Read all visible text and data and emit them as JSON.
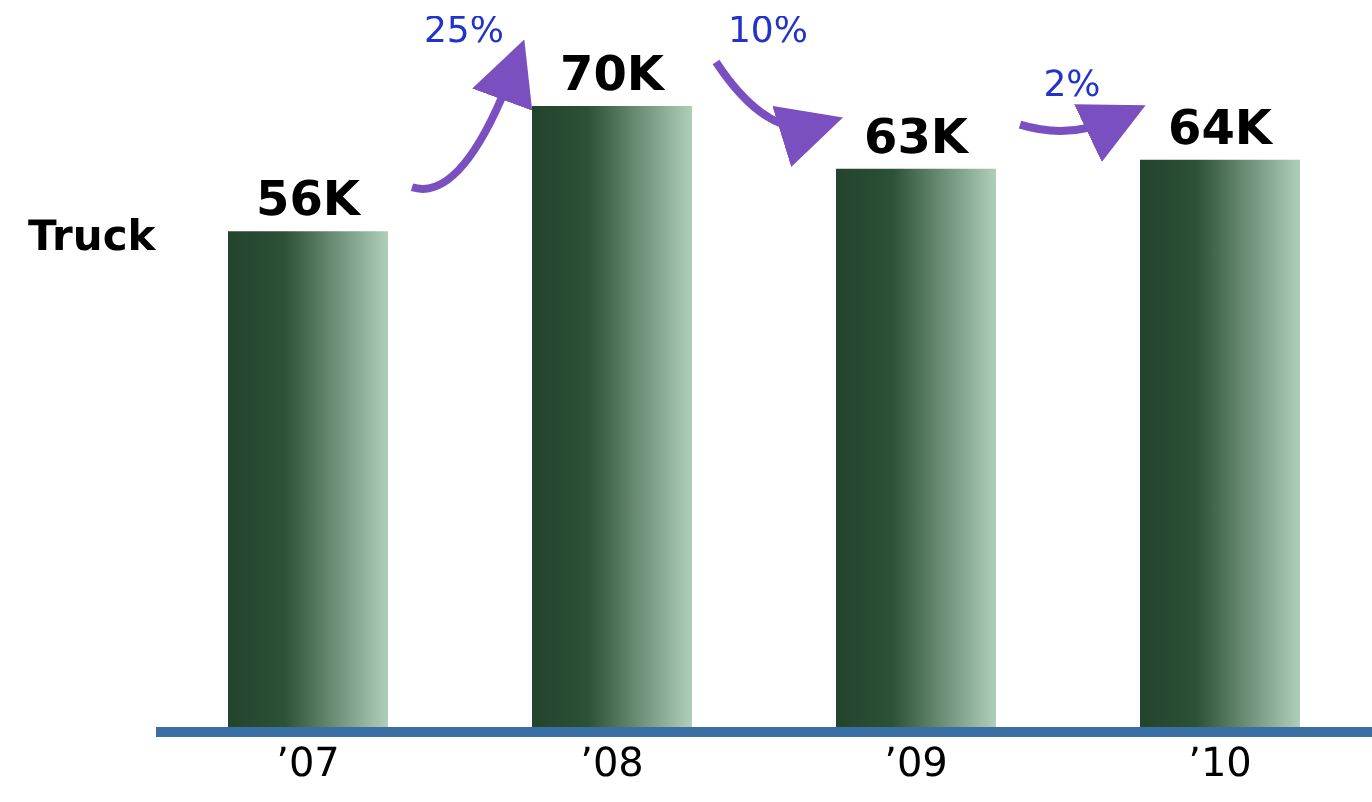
{
  "chart_data": {
    "type": "bar",
    "ylabel": "Truck",
    "categories": [
      "’07",
      "’08",
      "’09",
      "’10"
    ],
    "values": [
      56,
      70,
      63,
      64
    ],
    "value_labels": [
      "56K",
      "70K",
      "63K",
      "64K"
    ],
    "color": "#4f9463",
    "annotations": [
      "25%",
      "10%",
      "2%"
    ]
  }
}
